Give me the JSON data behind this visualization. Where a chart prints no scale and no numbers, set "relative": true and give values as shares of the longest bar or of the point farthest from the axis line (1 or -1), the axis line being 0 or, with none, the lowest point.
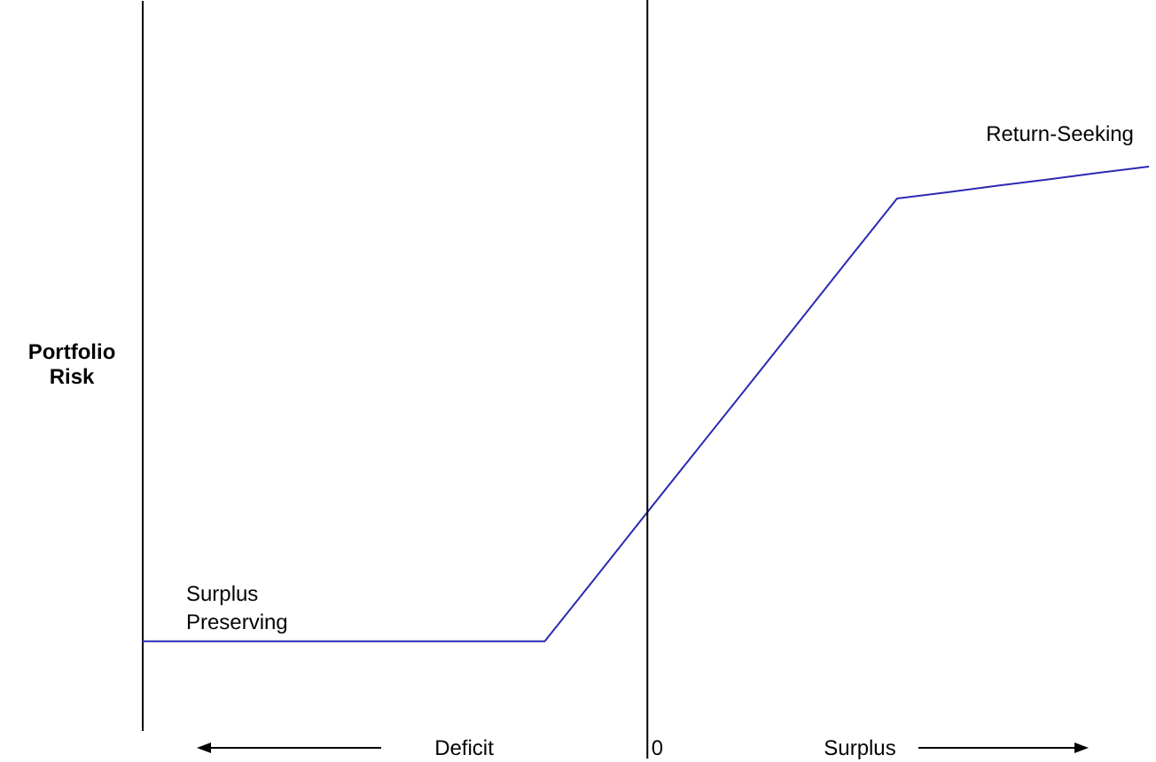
{
  "chart_data": {
    "type": "line",
    "relative": true,
    "ylabel": "Portfolio Risk",
    "categories": [
      null,
      null,
      null,
      null,
      null,
      null,
      null,
      null,
      null,
      null,
      null,
      null,
      null,
      null,
      null,
      null,
      null,
      null,
      null,
      null,
      null
    ],
    "series": [
      {
        "color": "#2a2ab4",
        "values": [
          0,
          0,
          0,
          0,
          0,
          0,
          0,
          0,
          0,
          0.133,
          0.267,
          0.4,
          0.533,
          0.666,
          0.8,
          0.933,
          0.946,
          0.96,
          0.973,
          0.987,
          1
        ]
      }
    ],
    "annotations": [
      "Surplus Preserving",
      "Return-Seeking",
      "Deficit",
      "Surplus",
      "0"
    ],
    "grid": false,
    "marker": "none",
    "line_style": "solid"
  }
}
